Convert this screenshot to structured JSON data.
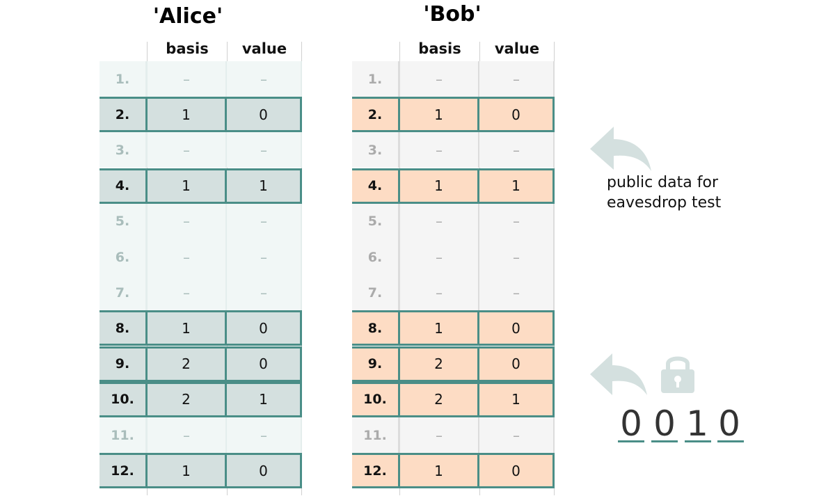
{
  "alice": {
    "title": "'Alice'",
    "headers": [
      "basis",
      "value"
    ],
    "rows": [
      {
        "idx": "1.",
        "basis": "–",
        "value": "–",
        "used": false
      },
      {
        "idx": "2.",
        "basis": "1",
        "value": "0",
        "used": true
      },
      {
        "idx": "3.",
        "basis": "–",
        "value": "–",
        "used": false
      },
      {
        "idx": "4.",
        "basis": "1",
        "value": "1",
        "used": true
      },
      {
        "idx": "5.",
        "basis": "–",
        "value": "–",
        "used": false
      },
      {
        "idx": "6.",
        "basis": "–",
        "value": "–",
        "used": false
      },
      {
        "idx": "7.",
        "basis": "–",
        "value": "–",
        "used": false
      },
      {
        "idx": "8.",
        "basis": "1",
        "value": "0",
        "used": true
      },
      {
        "idx": "9.",
        "basis": "2",
        "value": "0",
        "used": true
      },
      {
        "idx": "10.",
        "basis": "2",
        "value": "1",
        "used": true
      },
      {
        "idx": "11.",
        "basis": "–",
        "value": "–",
        "used": false
      },
      {
        "idx": "12.",
        "basis": "1",
        "value": "0",
        "used": true
      }
    ],
    "colors": {
      "used": "#d4e0df",
      "unused": "#f1f7f6"
    }
  },
  "bob": {
    "title": "'Bob'",
    "headers": [
      "basis",
      "value"
    ],
    "rows": [
      {
        "idx": "1.",
        "basis": "–",
        "value": "–",
        "used": false
      },
      {
        "idx": "2.",
        "basis": "1",
        "value": "0",
        "used": true
      },
      {
        "idx": "3.",
        "basis": "–",
        "value": "–",
        "used": false
      },
      {
        "idx": "4.",
        "basis": "1",
        "value": "1",
        "used": true
      },
      {
        "idx": "5.",
        "basis": "–",
        "value": "–",
        "used": false
      },
      {
        "idx": "6.",
        "basis": "–",
        "value": "–",
        "used": false
      },
      {
        "idx": "7.",
        "basis": "–",
        "value": "–",
        "used": false
      },
      {
        "idx": "8.",
        "basis": "1",
        "value": "0",
        "used": true
      },
      {
        "idx": "9.",
        "basis": "2",
        "value": "0",
        "used": true
      },
      {
        "idx": "10.",
        "basis": "2",
        "value": "1",
        "used": true
      },
      {
        "idx": "11.",
        "basis": "–",
        "value": "–",
        "used": false
      },
      {
        "idx": "12.",
        "basis": "1",
        "value": "0",
        "used": true
      }
    ],
    "colors": {
      "used": "#fddcc4",
      "unused": "#f5f5f5"
    }
  },
  "annotation": {
    "line1": "public data for",
    "line2": "eavesdrop test",
    "arrow_icon": "curved-arrow-left-icon",
    "arrow_color": "#d4e0df"
  },
  "key": {
    "lock_icon": "padlock-icon",
    "digits": [
      "0",
      "0",
      "1",
      "0"
    ],
    "underline_color": "#4a8e87"
  }
}
